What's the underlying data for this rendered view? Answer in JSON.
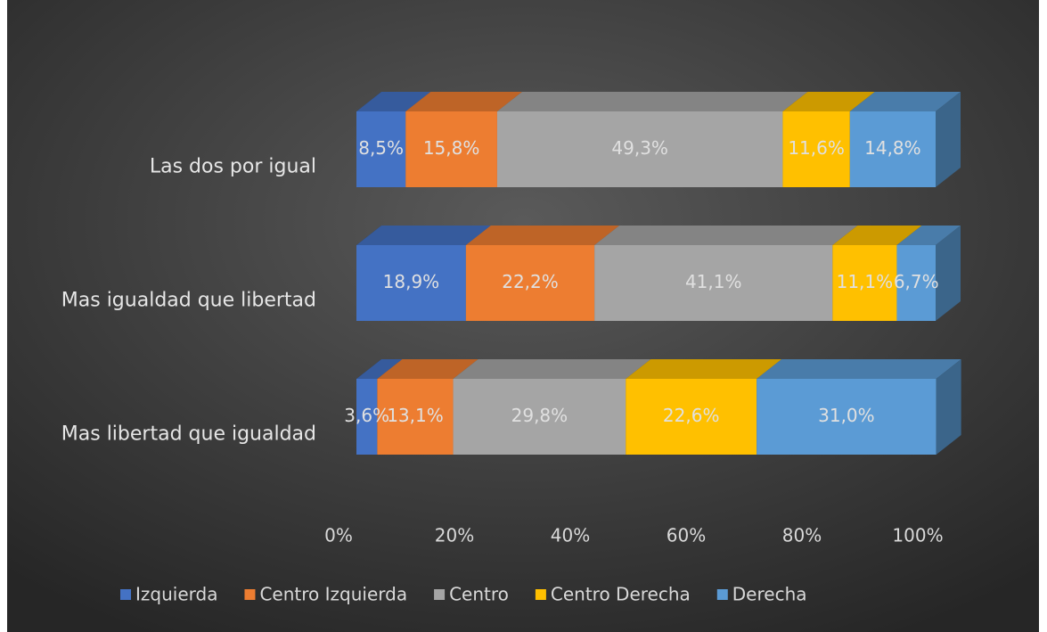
{
  "chart_data": {
    "type": "bar3d-stacked-horizontal",
    "categories": [
      "Las dos por igual",
      "Mas igualdad que libertad",
      "Mas libertad que igualdad"
    ],
    "series": [
      {
        "name": "Izquierda",
        "color": "#4472c4",
        "values": [
          8.5,
          18.9,
          3.6
        ],
        "value_labels": [
          "8,5%",
          "18,9%",
          "3,6%"
        ]
      },
      {
        "name": "Centro Izquierda",
        "color": "#ed7d31",
        "values": [
          15.8,
          22.2,
          13.1
        ],
        "value_labels": [
          "15,8%",
          "22,2%",
          "13,1%"
        ]
      },
      {
        "name": "Centro",
        "color": "#a5a5a5",
        "values": [
          49.3,
          41.1,
          29.8
        ],
        "value_labels": [
          "49,3%",
          "41,1%",
          "29,8%"
        ]
      },
      {
        "name": "Centro Derecha",
        "color": "#ffc000",
        "values": [
          11.6,
          11.1,
          22.6
        ],
        "value_labels": [
          "11,6%",
          "11,1%",
          "22,6%"
        ]
      },
      {
        "name": "Derecha",
        "color": "#5b9bd5",
        "values": [
          14.8,
          6.7,
          31.0
        ],
        "value_labels": [
          "14,8%",
          "6,7%",
          "31,0%"
        ]
      }
    ],
    "xlim": [
      0,
      100
    ],
    "xticks": [
      {
        "value": 0,
        "label": "0%"
      },
      {
        "value": 20,
        "label": "20%"
      },
      {
        "value": 40,
        "label": "40%"
      },
      {
        "value": 60,
        "label": "60%"
      },
      {
        "value": 80,
        "label": "80%"
      },
      {
        "value": 100,
        "label": "100%"
      }
    ],
    "legend": "bottom"
  }
}
